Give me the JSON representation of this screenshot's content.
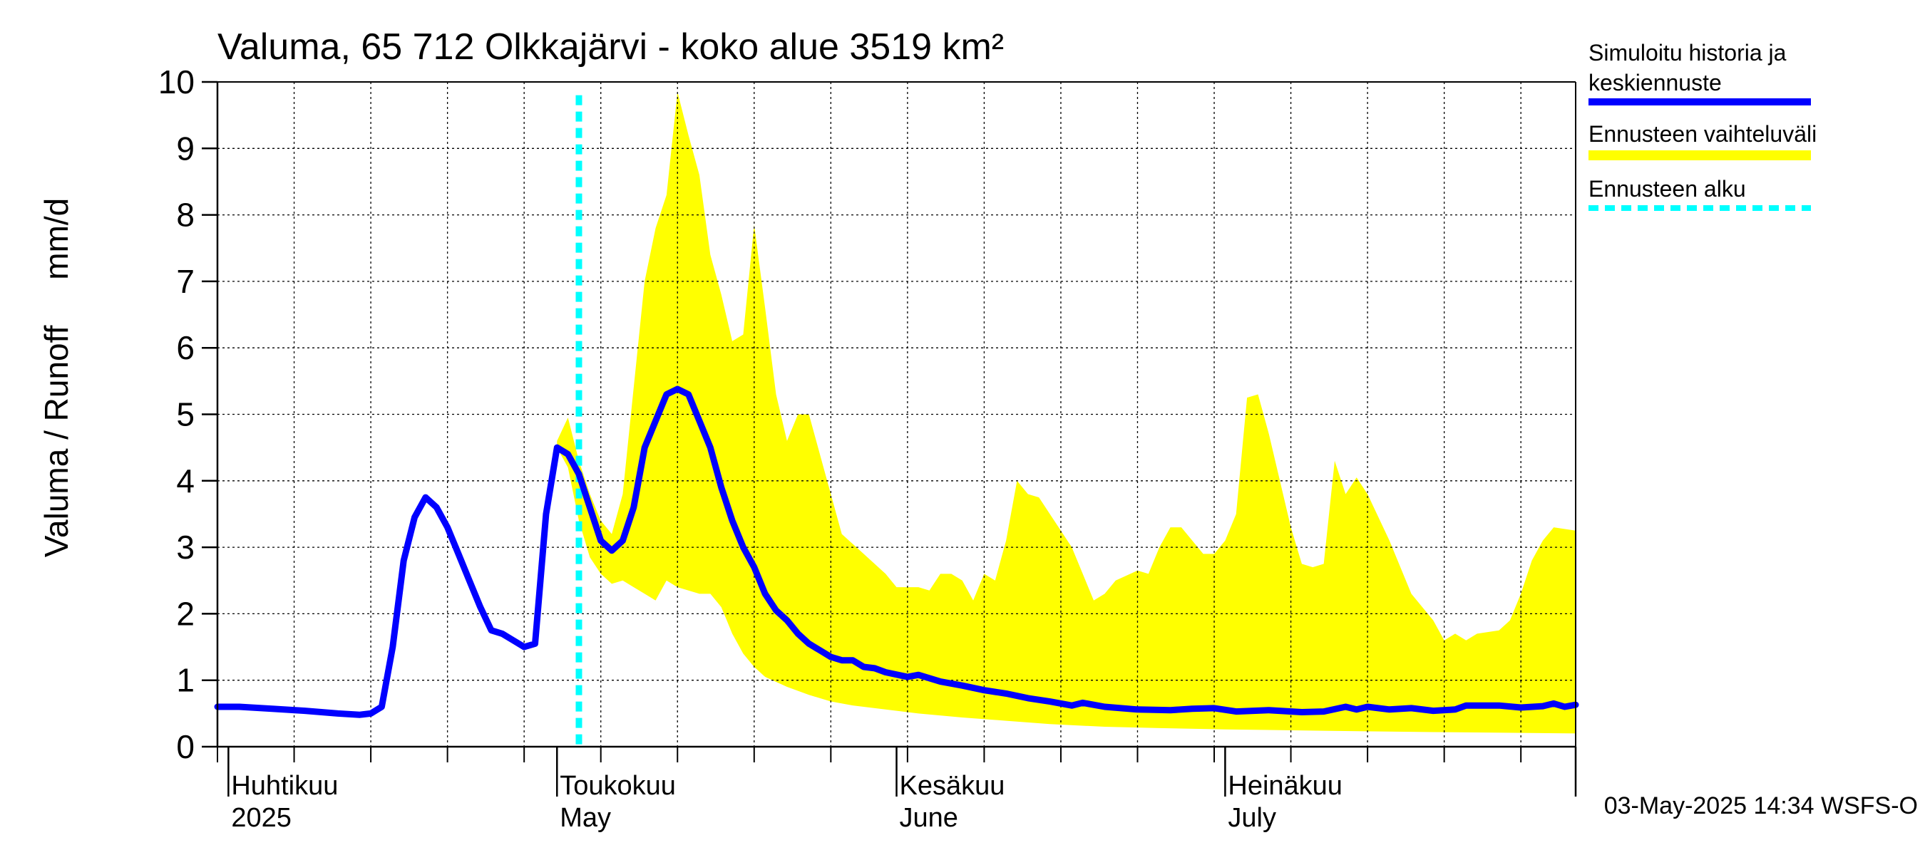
{
  "chart_data": {
    "type": "area",
    "title": "Valuma, 65 712 Olkkajärvi - koko alue 3519 km²",
    "ylabel": "Valuma / Runoff     mm/d",
    "ylim": [
      0,
      10
    ],
    "yticks": [
      0,
      1,
      2,
      3,
      4,
      5,
      6,
      7,
      8,
      9,
      10
    ],
    "grid": true,
    "xlim": [
      "2025-03-31",
      "2025-08-02"
    ],
    "x_axis_labels": [
      {
        "date": "2025-04-01",
        "line1": "Huhtikuu",
        "line2": "2025"
      },
      {
        "date": "2025-05-01",
        "line1": "Toukokuu",
        "line2": "May"
      },
      {
        "date": "2025-06-01",
        "line1": "Kesäkuu",
        "line2": "June"
      },
      {
        "date": "2025-07-01",
        "line1": "Heinäkuu",
        "line2": "July"
      }
    ],
    "forecast_start": "2025-05-03",
    "legend": {
      "placement": "right",
      "entries": [
        {
          "label_line1": "Simuloitu historia ja",
          "label_line2": "keskiennuste",
          "color": "#0000ff",
          "style": "solid"
        },
        {
          "label_line1": "Ennusteen vaihteluväli",
          "label_line2": "",
          "color": "#ffff00",
          "style": "band"
        },
        {
          "label_line1": "Ennusteen alku",
          "label_line2": "",
          "color": "#00ffff",
          "style": "dashed"
        }
      ]
    },
    "footer": "03-May-2025 14:34 WSFS-O",
    "series": [
      {
        "name": "Simuloitu historia ja keskiennuste",
        "color": "#0000ff",
        "points": [
          [
            "2025-03-31",
            0.6
          ],
          [
            "2025-04-02",
            0.6
          ],
          [
            "2025-04-05",
            0.57
          ],
          [
            "2025-04-08",
            0.54
          ],
          [
            "2025-04-11",
            0.5
          ],
          [
            "2025-04-13",
            0.48
          ],
          [
            "2025-04-14",
            0.5
          ],
          [
            "2025-04-15",
            0.6
          ],
          [
            "2025-04-16",
            1.5
          ],
          [
            "2025-04-17",
            2.8
          ],
          [
            "2025-04-18",
            3.45
          ],
          [
            "2025-04-19",
            3.75
          ],
          [
            "2025-04-20",
            3.6
          ],
          [
            "2025-04-21",
            3.3
          ],
          [
            "2025-04-22",
            2.9
          ],
          [
            "2025-04-23",
            2.5
          ],
          [
            "2025-04-24",
            2.1
          ],
          [
            "2025-04-25",
            1.75
          ],
          [
            "2025-04-26",
            1.7
          ],
          [
            "2025-04-27",
            1.6
          ],
          [
            "2025-04-28",
            1.5
          ],
          [
            "2025-04-29",
            1.55
          ],
          [
            "2025-04-30",
            3.5
          ],
          [
            "2025-05-01",
            4.5
          ],
          [
            "2025-05-02",
            4.4
          ],
          [
            "2025-05-03",
            4.1
          ],
          [
            "2025-05-04",
            3.6
          ],
          [
            "2025-05-05",
            3.1
          ],
          [
            "2025-05-06",
            2.95
          ],
          [
            "2025-05-07",
            3.1
          ],
          [
            "2025-05-08",
            3.6
          ],
          [
            "2025-05-09",
            4.5
          ],
          [
            "2025-05-10",
            4.9
          ],
          [
            "2025-05-11",
            5.3
          ],
          [
            "2025-05-12",
            5.38
          ],
          [
            "2025-05-13",
            5.3
          ],
          [
            "2025-05-14",
            4.9
          ],
          [
            "2025-05-15",
            4.5
          ],
          [
            "2025-05-16",
            3.9
          ],
          [
            "2025-05-17",
            3.4
          ],
          [
            "2025-05-18",
            3.0
          ],
          [
            "2025-05-19",
            2.7
          ],
          [
            "2025-05-20",
            2.3
          ],
          [
            "2025-05-21",
            2.05
          ],
          [
            "2025-05-22",
            1.9
          ],
          [
            "2025-05-23",
            1.7
          ],
          [
            "2025-05-24",
            1.55
          ],
          [
            "2025-05-25",
            1.45
          ],
          [
            "2025-05-26",
            1.35
          ],
          [
            "2025-05-27",
            1.3
          ],
          [
            "2025-05-28",
            1.3
          ],
          [
            "2025-05-29",
            1.2
          ],
          [
            "2025-05-30",
            1.18
          ],
          [
            "2025-05-31",
            1.12
          ],
          [
            "2025-06-02",
            1.05
          ],
          [
            "2025-06-03",
            1.08
          ],
          [
            "2025-06-05",
            0.98
          ],
          [
            "2025-06-07",
            0.92
          ],
          [
            "2025-06-09",
            0.85
          ],
          [
            "2025-06-11",
            0.8
          ],
          [
            "2025-06-13",
            0.73
          ],
          [
            "2025-06-15",
            0.68
          ],
          [
            "2025-06-17",
            0.62
          ],
          [
            "2025-06-18",
            0.66
          ],
          [
            "2025-06-20",
            0.6
          ],
          [
            "2025-06-23",
            0.56
          ],
          [
            "2025-06-26",
            0.55
          ],
          [
            "2025-06-28",
            0.57
          ],
          [
            "2025-06-30",
            0.58
          ],
          [
            "2025-07-02",
            0.53
          ],
          [
            "2025-07-05",
            0.55
          ],
          [
            "2025-07-08",
            0.52
          ],
          [
            "2025-07-10",
            0.53
          ],
          [
            "2025-07-12",
            0.6
          ],
          [
            "2025-07-13",
            0.56
          ],
          [
            "2025-07-14",
            0.6
          ],
          [
            "2025-07-16",
            0.56
          ],
          [
            "2025-07-18",
            0.58
          ],
          [
            "2025-07-20",
            0.54
          ],
          [
            "2025-07-22",
            0.56
          ],
          [
            "2025-07-23",
            0.62
          ],
          [
            "2025-07-26",
            0.62
          ],
          [
            "2025-07-28",
            0.59
          ],
          [
            "2025-07-30",
            0.61
          ],
          [
            "2025-07-31",
            0.65
          ],
          [
            "2025-08-01",
            0.6
          ],
          [
            "2025-08-02",
            0.63
          ]
        ]
      },
      {
        "name": "Ennusteen vaihteluväli",
        "color": "#ffff00",
        "upper": [
          [
            "2025-05-01",
            4.6
          ],
          [
            "2025-05-02",
            4.95
          ],
          [
            "2025-05-03",
            4.3
          ],
          [
            "2025-05-04",
            3.8
          ],
          [
            "2025-05-05",
            3.4
          ],
          [
            "2025-05-06",
            3.2
          ],
          [
            "2025-05-07",
            3.8
          ],
          [
            "2025-05-08",
            5.4
          ],
          [
            "2025-05-09",
            7.0
          ],
          [
            "2025-05-10",
            7.8
          ],
          [
            "2025-05-11",
            8.3
          ],
          [
            "2025-05-12",
            9.85
          ],
          [
            "2025-05-13",
            9.2
          ],
          [
            "2025-05-14",
            8.6
          ],
          [
            "2025-05-15",
            7.4
          ],
          [
            "2025-05-16",
            6.8
          ],
          [
            "2025-05-17",
            6.1
          ],
          [
            "2025-05-18",
            6.2
          ],
          [
            "2025-05-19",
            7.85
          ],
          [
            "2025-05-20",
            6.6
          ],
          [
            "2025-05-21",
            5.3
          ],
          [
            "2025-05-22",
            4.6
          ],
          [
            "2025-05-23",
            5.0
          ],
          [
            "2025-05-24",
            5.0
          ],
          [
            "2025-05-25",
            4.4
          ],
          [
            "2025-05-27",
            3.2
          ],
          [
            "2025-05-29",
            2.9
          ],
          [
            "2025-05-31",
            2.6
          ],
          [
            "2025-06-01",
            2.4
          ],
          [
            "2025-06-03",
            2.4
          ],
          [
            "2025-06-04",
            2.35
          ],
          [
            "2025-06-05",
            2.6
          ],
          [
            "2025-06-06",
            2.6
          ],
          [
            "2025-06-07",
            2.5
          ],
          [
            "2025-06-08",
            2.2
          ],
          [
            "2025-06-09",
            2.6
          ],
          [
            "2025-06-10",
            2.5
          ],
          [
            "2025-06-11",
            3.1
          ],
          [
            "2025-06-12",
            4.0
          ],
          [
            "2025-06-13",
            3.8
          ],
          [
            "2025-06-14",
            3.75
          ],
          [
            "2025-06-15",
            3.5
          ],
          [
            "2025-06-17",
            3.0
          ],
          [
            "2025-06-19",
            2.2
          ],
          [
            "2025-06-20",
            2.3
          ],
          [
            "2025-06-21",
            2.5
          ],
          [
            "2025-06-23",
            2.65
          ],
          [
            "2025-06-24",
            2.6
          ],
          [
            "2025-06-25",
            3.0
          ],
          [
            "2025-06-26",
            3.3
          ],
          [
            "2025-06-27",
            3.3
          ],
          [
            "2025-06-28",
            3.1
          ],
          [
            "2025-06-29",
            2.9
          ],
          [
            "2025-06-30",
            2.9
          ],
          [
            "2025-07-01",
            3.1
          ],
          [
            "2025-07-02",
            3.5
          ],
          [
            "2025-07-03",
            5.25
          ],
          [
            "2025-07-04",
            5.3
          ],
          [
            "2025-07-05",
            4.7
          ],
          [
            "2025-07-06",
            4.0
          ],
          [
            "2025-07-07",
            3.3
          ],
          [
            "2025-07-08",
            2.75
          ],
          [
            "2025-07-09",
            2.7
          ],
          [
            "2025-07-10",
            2.75
          ],
          [
            "2025-07-11",
            4.3
          ],
          [
            "2025-07-12",
            3.8
          ],
          [
            "2025-07-13",
            4.05
          ],
          [
            "2025-07-14",
            3.8
          ],
          [
            "2025-07-16",
            3.1
          ],
          [
            "2025-07-18",
            2.3
          ],
          [
            "2025-07-20",
            1.9
          ],
          [
            "2025-07-21",
            1.6
          ],
          [
            "2025-07-22",
            1.7
          ],
          [
            "2025-07-23",
            1.6
          ],
          [
            "2025-07-24",
            1.7
          ],
          [
            "2025-07-26",
            1.75
          ],
          [
            "2025-07-27",
            1.9
          ],
          [
            "2025-07-28",
            2.3
          ],
          [
            "2025-07-29",
            2.8
          ],
          [
            "2025-07-30",
            3.1
          ],
          [
            "2025-07-31",
            3.3
          ],
          [
            "2025-08-02",
            3.25
          ]
        ],
        "lower": [
          [
            "2025-05-01",
            4.5
          ],
          [
            "2025-05-02",
            4.2
          ],
          [
            "2025-05-03",
            3.4
          ],
          [
            "2025-05-04",
            2.85
          ],
          [
            "2025-05-05",
            2.6
          ],
          [
            "2025-05-06",
            2.45
          ],
          [
            "2025-05-07",
            2.5
          ],
          [
            "2025-05-08",
            2.4
          ],
          [
            "2025-05-09",
            2.3
          ],
          [
            "2025-05-10",
            2.2
          ],
          [
            "2025-05-11",
            2.5
          ],
          [
            "2025-05-12",
            2.4
          ],
          [
            "2025-05-13",
            2.35
          ],
          [
            "2025-05-14",
            2.3
          ],
          [
            "2025-05-15",
            2.3
          ],
          [
            "2025-05-16",
            2.1
          ],
          [
            "2025-05-17",
            1.7
          ],
          [
            "2025-05-18",
            1.4
          ],
          [
            "2025-05-19",
            1.2
          ],
          [
            "2025-05-20",
            1.05
          ],
          [
            "2025-05-22",
            0.9
          ],
          [
            "2025-05-24",
            0.78
          ],
          [
            "2025-05-26",
            0.68
          ],
          [
            "2025-05-28",
            0.62
          ],
          [
            "2025-05-31",
            0.56
          ],
          [
            "2025-06-03",
            0.5
          ],
          [
            "2025-06-07",
            0.44
          ],
          [
            "2025-06-11",
            0.39
          ],
          [
            "2025-06-15",
            0.34
          ],
          [
            "2025-06-20",
            0.3
          ],
          [
            "2025-06-25",
            0.28
          ],
          [
            "2025-07-01",
            0.26
          ],
          [
            "2025-07-10",
            0.24
          ],
          [
            "2025-07-20",
            0.22
          ],
          [
            "2025-08-02",
            0.2
          ]
        ]
      }
    ]
  }
}
